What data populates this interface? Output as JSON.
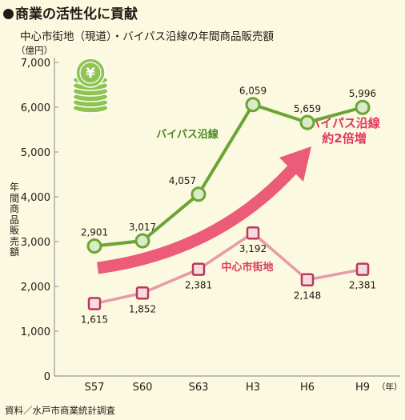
{
  "header": {
    "title": "商業の活性化に貢献",
    "subtitle": "中心市街地（現道）・バイパス沿線の年間商品販売額"
  },
  "source_note": "資料／水戸市商業統計調査",
  "icon": {
    "name": "yen-coins-icon",
    "glyph": "¥"
  },
  "colors": {
    "background": "#fbf9df",
    "bypass_line": "#6aa535",
    "bypass_marker_fill": "#dbeac7",
    "center_line": "#e79aa7",
    "center_marker_fill": "#f7dbe1",
    "center_marker_stroke": "#b83a55",
    "arrow": "#ec5b78",
    "bypass_label": "#4c8a23",
    "center_label": "#e03a5f",
    "axis": "#9a9a9a"
  },
  "chart_data": {
    "type": "line",
    "ylabel": "年間商品販売額",
    "yunit": "（億円）",
    "xunit": "（年）",
    "ylim": [
      0,
      7000
    ],
    "yticks": [
      0,
      1000,
      2000,
      3000,
      4000,
      5000,
      6000,
      7000
    ],
    "ytick_labels": [
      "0",
      "1,000",
      "2,000",
      "3,000",
      "4,000",
      "5,000",
      "6,000",
      "7,000"
    ],
    "categories": [
      "S57",
      "S60",
      "S63",
      "H3",
      "H6",
      "H9"
    ],
    "series": [
      {
        "name": "バイパス沿線",
        "values": [
          2901,
          3017,
          4057,
          6059,
          5659,
          5996
        ],
        "labels": [
          "2,901",
          "3,017",
          "4,057",
          "6,059",
          "5,659",
          "5,996"
        ]
      },
      {
        "name": "中心市街地",
        "values": [
          1615,
          1852,
          2381,
          3192,
          2148,
          2381
        ],
        "labels": [
          "1,615",
          "1,852",
          "2,381",
          "3,192",
          "2,148",
          "2,381"
        ]
      }
    ],
    "annotation": {
      "line1": "バイパス沿線",
      "line2": "約2倍増"
    }
  }
}
